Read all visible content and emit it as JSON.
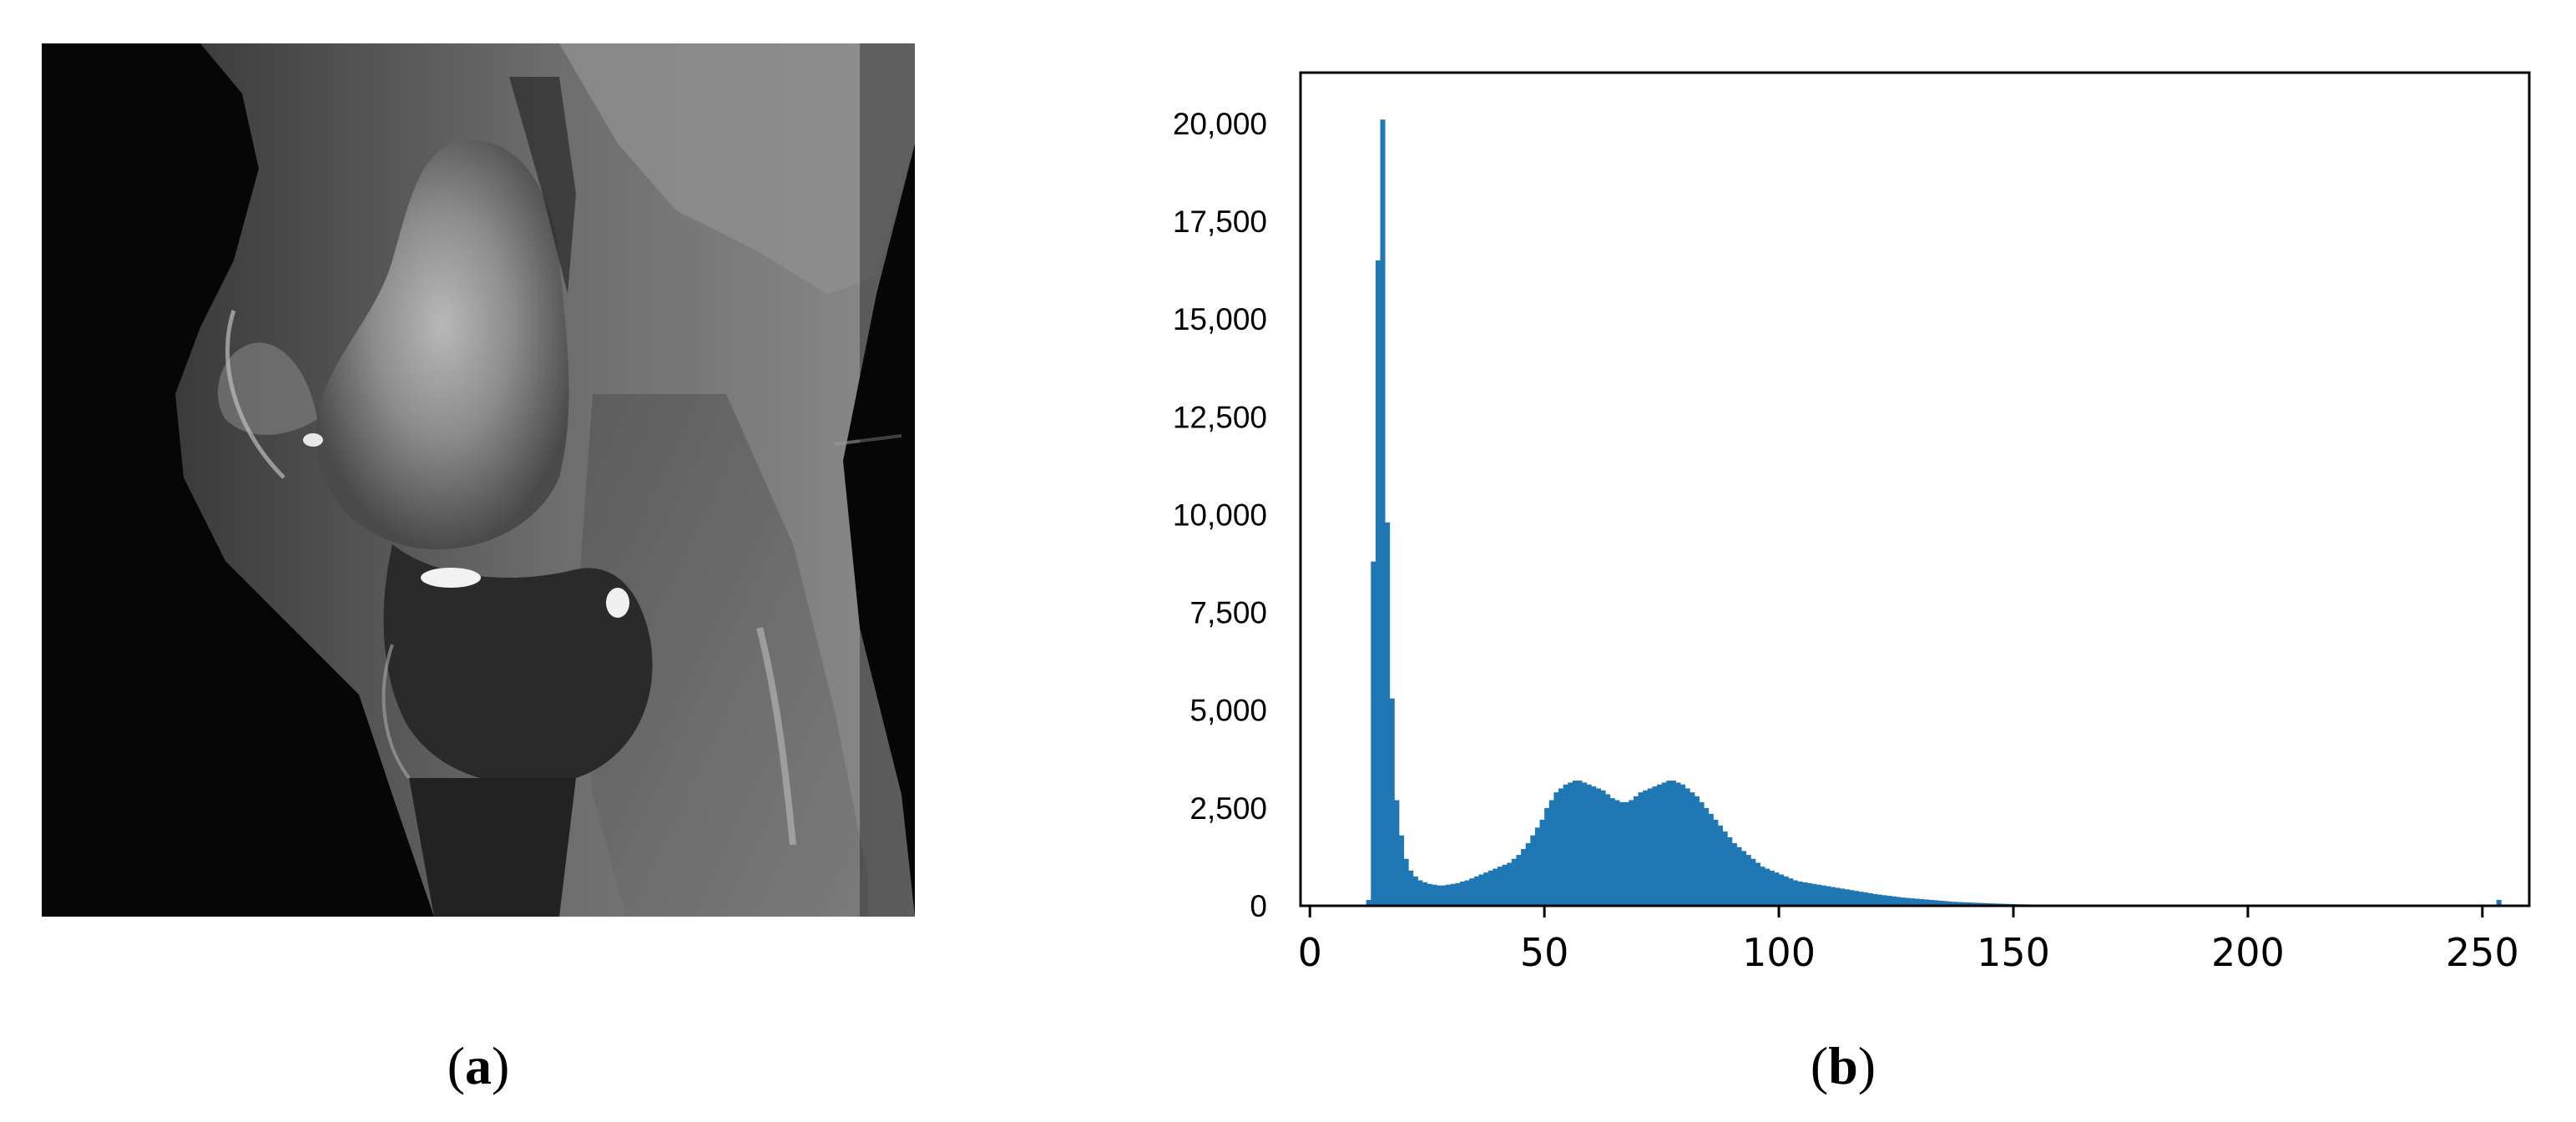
{
  "panels": {
    "a": {
      "label_open": "(",
      "label_letter": "a",
      "label_close": ")"
    },
    "b": {
      "label_open": "(",
      "label_letter": "b",
      "label_close": ")"
    }
  },
  "chart_data": {
    "type": "bar",
    "title": "",
    "xlabel": "",
    "ylabel": "",
    "xlim": [
      -2,
      260
    ],
    "ylim": [
      0,
      21300
    ],
    "x_ticks": [
      0,
      50,
      100,
      150,
      200,
      250
    ],
    "x_tick_labels": [
      "0",
      "50",
      "100",
      "150",
      "200",
      "250"
    ],
    "y_ticks": [
      0,
      2500,
      5000,
      7500,
      10000,
      12500,
      15000,
      17500,
      20000
    ],
    "y_tick_labels": [
      "0",
      "2,500",
      "5,000",
      "7,500",
      "10,000",
      "12,500",
      "15,000",
      "17,500",
      "20,000"
    ],
    "grid": false,
    "bar_color": "#1f77b4",
    "bin_start": 0,
    "bin_width": 1,
    "values": [
      0,
      0,
      0,
      0,
      0,
      0,
      0,
      0,
      0,
      0,
      0,
      0,
      150,
      8800,
      16500,
      20100,
      9800,
      5300,
      2700,
      1800,
      1200,
      900,
      750,
      650,
      600,
      560,
      540,
      520,
      520,
      540,
      560,
      580,
      620,
      650,
      700,
      750,
      800,
      850,
      900,
      950,
      1000,
      1050,
      1100,
      1200,
      1300,
      1450,
      1600,
      1800,
      2000,
      2200,
      2500,
      2700,
      2900,
      3000,
      3100,
      3150,
      3200,
      3200,
      3150,
      3100,
      3050,
      3000,
      2950,
      2850,
      2750,
      2700,
      2650,
      2650,
      2700,
      2800,
      2900,
      2950,
      3000,
      3050,
      3100,
      3150,
      3200,
      3200,
      3150,
      3100,
      3000,
      2900,
      2800,
      2650,
      2500,
      2350,
      2200,
      2050,
      1900,
      1750,
      1600,
      1500,
      1400,
      1300,
      1200,
      1100,
      1000,
      950,
      900,
      850,
      800,
      750,
      700,
      650,
      620,
      600,
      580,
      560,
      540,
      520,
      500,
      480,
      460,
      440,
      420,
      400,
      380,
      360,
      340,
      320,
      300,
      285,
      270,
      255,
      240,
      225,
      210,
      200,
      190,
      180,
      170,
      160,
      150,
      140,
      130,
      120,
      110,
      100,
      95,
      90,
      85,
      80,
      75,
      70,
      65,
      60,
      56,
      52,
      48,
      44,
      40,
      37,
      34,
      31,
      28,
      26,
      24,
      22,
      20,
      18,
      17,
      16,
      15,
      14,
      13,
      12,
      11,
      10,
      10,
      9,
      9,
      8,
      8,
      7,
      7,
      6,
      6,
      6,
      5,
      5,
      5,
      5,
      4,
      4,
      4,
      4,
      4,
      3,
      3,
      3,
      3,
      3,
      3,
      3,
      2,
      2,
      2,
      2,
      2,
      2,
      2,
      2,
      2,
      2,
      2,
      2,
      2,
      2,
      2,
      2,
      2,
      2,
      2,
      2,
      1,
      1,
      1,
      1,
      1,
      1,
      1,
      1,
      1,
      1,
      1,
      1,
      1,
      1,
      1,
      1,
      1,
      1,
      1,
      1,
      1,
      1,
      1,
      1,
      1,
      1,
      1,
      1,
      1,
      1,
      1,
      1,
      1,
      1,
      1,
      1,
      1,
      1,
      1,
      150,
      1
    ]
  }
}
